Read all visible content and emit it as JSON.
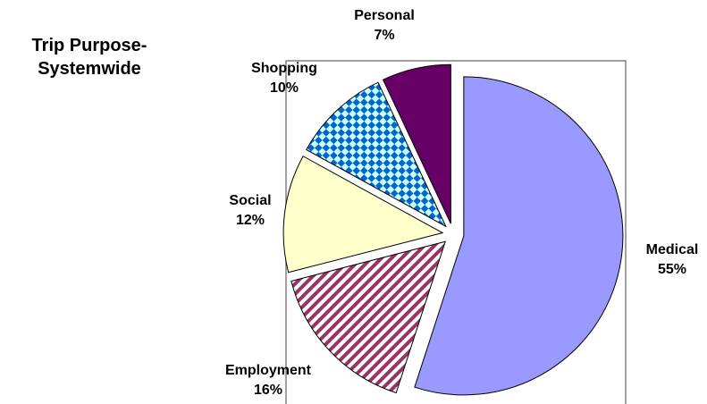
{
  "chart_data": {
    "type": "pie",
    "title": "Trip Purpose-Systemwide",
    "categories": [
      "Medical",
      "Employment",
      "Social",
      "Shopping",
      "Personal"
    ],
    "values": [
      55,
      16,
      12,
      10,
      7
    ],
    "value_labels": [
      "55%",
      "16%",
      "12%",
      "10%",
      "7%"
    ],
    "colors": [
      "#9999FF",
      "#993366",
      "#FFFFCC",
      "#0066CC",
      "#660066"
    ],
    "patterns": [
      "solid",
      "diagonal",
      "solid",
      "checker",
      "solid"
    ]
  }
}
